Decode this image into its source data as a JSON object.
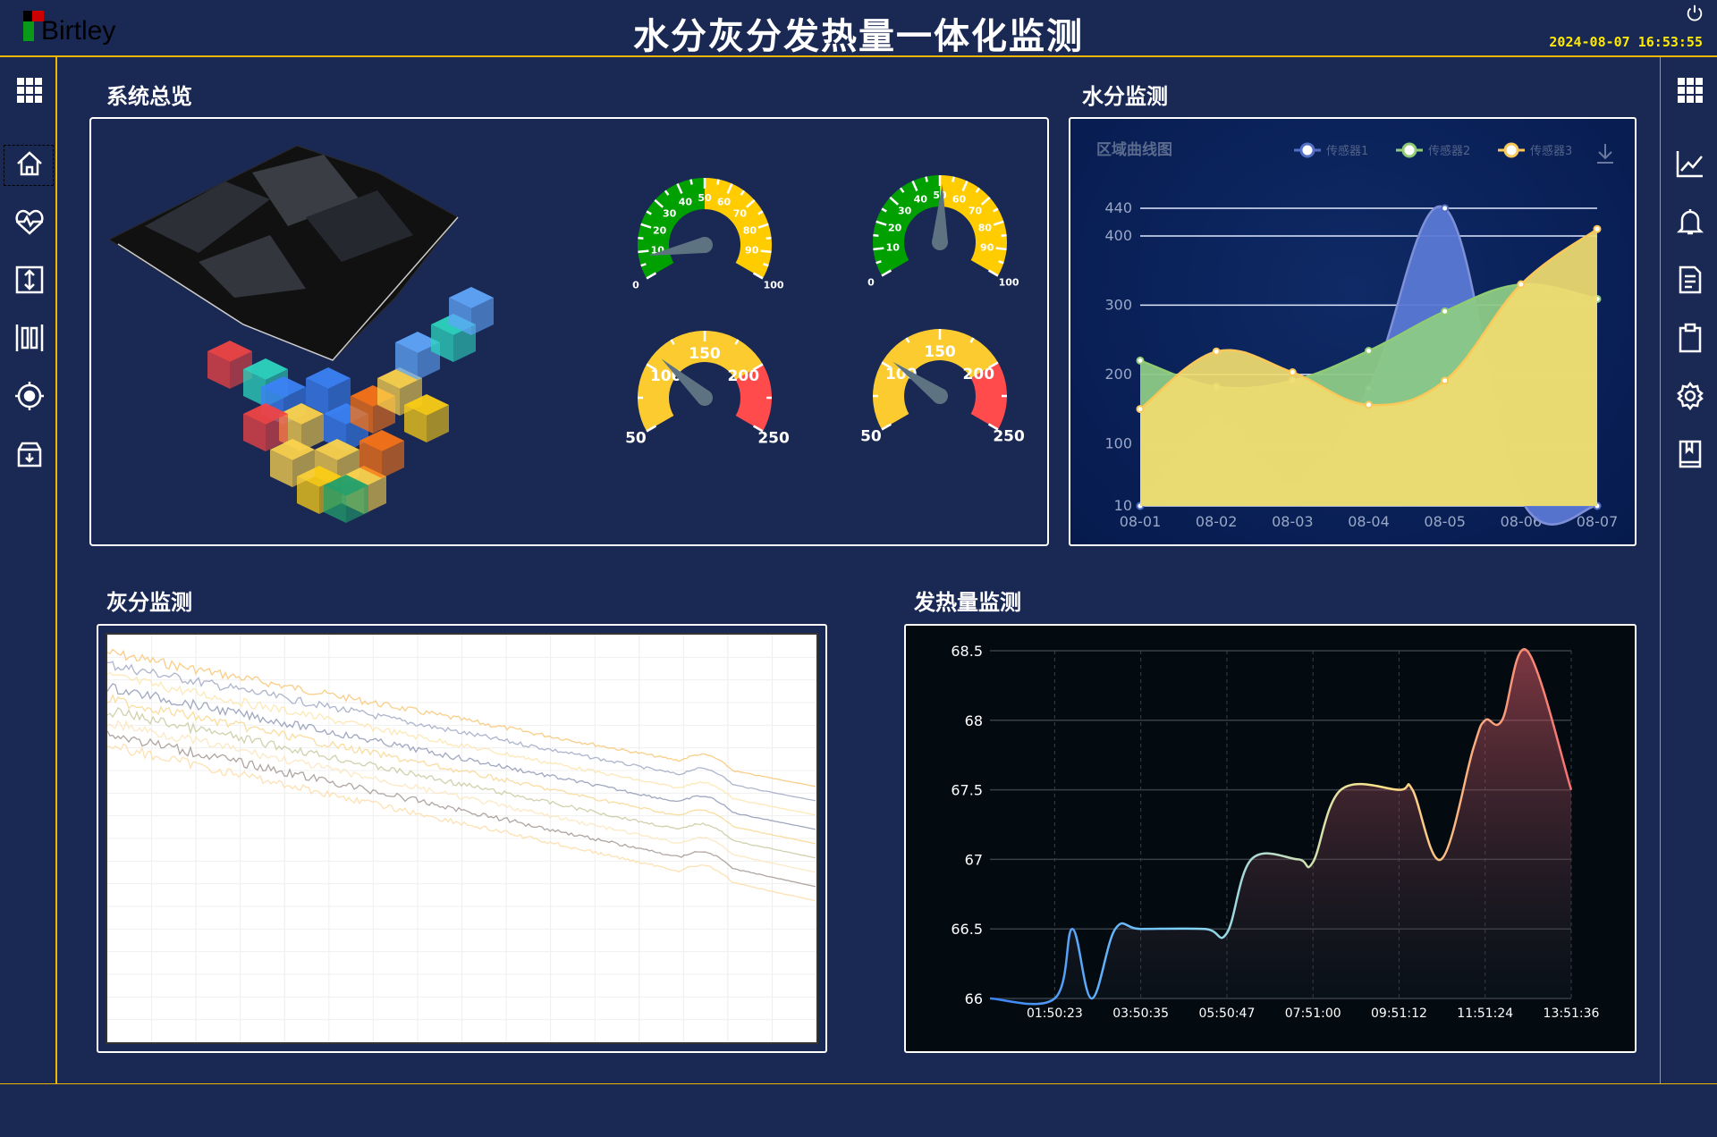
{
  "header": {
    "title": "水分灰分发热量一体化监测",
    "logo_text": "Birtley",
    "datetime": "2024-08-07  16:53:55",
    "power_icon": "power-icon"
  },
  "left_sidebar": {
    "items": [
      {
        "name": "apps",
        "icon": "grid-icon"
      },
      {
        "name": "home",
        "icon": "home-icon",
        "selected": true
      },
      {
        "name": "health",
        "icon": "heart-pulse-icon"
      },
      {
        "name": "adjust",
        "icon": "vertical-arrows-icon"
      },
      {
        "name": "bars",
        "icon": "bars-icon"
      },
      {
        "name": "target",
        "icon": "target-icon"
      },
      {
        "name": "archive",
        "icon": "archive-download-icon"
      }
    ]
  },
  "right_sidebar": {
    "items": [
      {
        "name": "apps",
        "icon": "grid-icon"
      },
      {
        "name": "trend",
        "icon": "line-chart-icon"
      },
      {
        "name": "alarm",
        "icon": "bell-icon"
      },
      {
        "name": "document",
        "icon": "document-icon"
      },
      {
        "name": "clipboard",
        "icon": "clipboard-icon"
      },
      {
        "name": "settings",
        "icon": "gear-icon"
      },
      {
        "name": "manual",
        "icon": "book-icon"
      }
    ]
  },
  "sections": {
    "overview": "系统总览",
    "moisture": "水分监测",
    "ash": "灰分监测",
    "heat": "发热量监测"
  },
  "gauges": [
    {
      "min": 0,
      "max": 100,
      "value": 8,
      "labels": [
        0,
        10,
        20,
        30,
        40,
        50,
        60,
        70,
        80,
        90,
        100
      ],
      "bands": [
        {
          "to": 50,
          "color": "#00a000"
        },
        {
          "to": 100,
          "color": "#ffcc00"
        }
      ]
    },
    {
      "min": 0,
      "max": 100,
      "value": 51,
      "labels": [
        0,
        10,
        20,
        30,
        40,
        50,
        60,
        70,
        80,
        90,
        100
      ],
      "bands": [
        {
          "to": 50,
          "color": "#00a000"
        },
        {
          "to": 100,
          "color": "#ffcc00"
        }
      ]
    },
    {
      "min": 50,
      "max": 250,
      "value": 110,
      "labels": [
        50,
        100,
        150,
        200,
        250
      ],
      "bands": [
        {
          "to": 200,
          "color": "#fccb30"
        },
        {
          "to": 250,
          "color": "#ff4b4b"
        }
      ]
    },
    {
      "min": 50,
      "max": 250,
      "value": 105,
      "labels": [
        50,
        100,
        150,
        200,
        250
      ],
      "bands": [
        {
          "to": 200,
          "color": "#fccb30"
        },
        {
          "to": 250,
          "color": "#ff4b4b"
        }
      ]
    }
  ],
  "chart_data": [
    {
      "type": "area",
      "title": "区域曲线图",
      "download_icon": "download-icon",
      "categories": [
        "08-01",
        "08-02",
        "08-03",
        "08-04",
        "08-05",
        "08-06",
        "08-07"
      ],
      "yticks": [
        10,
        100,
        200,
        300,
        400,
        440
      ],
      "ylim": [
        10,
        440
      ],
      "grid": true,
      "legend": "top-right",
      "series": [
        {
          "name": "传感器1",
          "color": "#5470c6",
          "values": [
            10,
            130,
            40,
            180,
            440,
            20,
            10
          ]
        },
        {
          "name": "传感器2",
          "color": "#91cc75",
          "values": [
            220,
            182,
            191,
            234,
            291,
            330,
            309
          ]
        },
        {
          "name": "传感器3",
          "color": "#fac858",
          "values": [
            150,
            233,
            203,
            156,
            191,
            330,
            410
          ]
        }
      ]
    },
    {
      "type": "line",
      "xticks": [
        "01:50:23",
        "03:50:35",
        "05:50:47",
        "07:51:00",
        "09:51:12",
        "11:51:24",
        "13:51:36"
      ],
      "xlim": [
        "00:20:00",
        "13:51:36"
      ],
      "yticks": [
        66,
        66.5,
        67,
        67.5,
        68,
        68.5
      ],
      "ylim": [
        66,
        68.5
      ],
      "grid": true,
      "points": [
        [
          "00:20:00",
          66
        ],
        [
          "01:50:23",
          66
        ],
        [
          "02:15:00",
          66.5
        ],
        [
          "02:42:00",
          66
        ],
        [
          "03:15:00",
          66.5
        ],
        [
          "03:50:35",
          66.5
        ],
        [
          "05:20:00",
          66.5
        ],
        [
          "05:50:47",
          66.47
        ],
        [
          "06:25:00",
          67
        ],
        [
          "07:30:00",
          67
        ],
        [
          "07:51:00",
          66.98
        ],
        [
          "08:30:00",
          67.5
        ],
        [
          "09:51:12",
          67.5
        ],
        [
          "10:10:00",
          67.5
        ],
        [
          "10:50:00",
          67
        ],
        [
          "11:35:00",
          67.8
        ],
        [
          "11:51:24",
          68
        ],
        [
          "12:15:00",
          68
        ],
        [
          "12:50:00",
          68.5
        ],
        [
          "13:51:36",
          67.5
        ]
      ],
      "colors": [
        "#3b82f6",
        "#7dd3fc",
        "#fde68a",
        "#f87171"
      ]
    },
    {
      "type": "line",
      "note_free": true
    }
  ]
}
